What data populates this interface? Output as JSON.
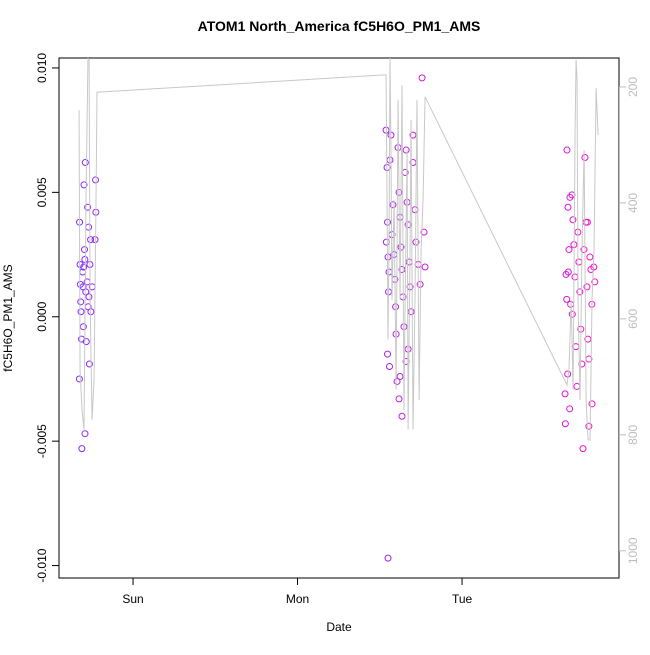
{
  "chart_data": {
    "type": "scatter",
    "title": "ATOM1 North_America fC5H6O_PM1_AMS",
    "xlabel": "Date",
    "ylabel": "fC5H6O_PM1_AMS",
    "xlim": [
      -0.45,
      2.954
    ],
    "xticks": [
      {
        "value": 0,
        "label": "Sun"
      },
      {
        "value": 1,
        "label": "Mon"
      },
      {
        "value": 2,
        "label": "Tue"
      }
    ],
    "ylim": [
      -0.0105,
      0.0104
    ],
    "yticks": [
      {
        "value": -0.01,
        "label": "-0.010"
      },
      {
        "value": -0.005,
        "label": "-0.005"
      },
      {
        "value": 0,
        "label": "0.000"
      },
      {
        "value": 0.005,
        "label": "0.005"
      },
      {
        "value": 0.01,
        "label": "0.010"
      }
    ],
    "y2lim": [
      1047,
      150
    ],
    "y2ticks": [
      200,
      400,
      600,
      800,
      1000
    ],
    "y2_color": "#bdbdbd",
    "series": [
      {
        "type": "scatter",
        "color_scale": [
          "#7a2cff",
          "#ff10c8"
        ],
        "x": [
          -0.325,
          -0.322,
          -0.32,
          -0.318,
          -0.316,
          -0.313,
          -0.326,
          -0.311,
          -0.306,
          -0.304,
          -0.3,
          -0.298,
          -0.29,
          -0.295,
          -0.293,
          -0.287,
          -0.302,
          -0.284,
          -0.265,
          -0.292,
          -0.276,
          -0.27,
          -0.258,
          -0.262,
          -0.279,
          -0.268,
          -0.273,
          -0.256,
          -0.228,
          -0.226,
          -0.231,
          -0.248,
          1.55,
          1.538,
          1.544,
          1.547,
          1.54,
          1.55,
          1.556,
          1.553,
          1.547,
          1.559,
          1.568,
          1.562,
          1.58,
          1.574,
          1.586,
          1.592,
          1.596,
          1.605,
          1.599,
          1.611,
          1.617,
          1.623,
          1.629,
          1.635,
          1.641,
          1.647,
          1.623,
          1.617,
          1.635,
          1.66,
          1.654,
          1.666,
          1.672,
          1.678,
          1.684,
          1.69,
          1.672,
          1.66,
          1.702,
          1.702,
          1.714,
          1.72,
          1.733,
          1.745,
          1.757,
          1.769,
          1.775,
          2.638,
          2.644,
          2.632,
          2.636,
          2.626,
          2.628,
          2.656,
          2.65,
          2.646,
          2.66,
          2.642,
          2.654,
          2.668,
          2.674,
          2.68,
          2.686,
          2.67,
          2.692,
          2.698,
          2.704,
          2.71,
          2.716,
          2.722,
          2.728,
          2.735,
          2.747,
          2.753,
          2.741,
          2.759,
          2.765,
          2.771,
          2.762,
          2.777,
          2.783,
          2.789,
          2.771,
          2.79,
          2.801,
          2.807
        ],
        "values": [
          0.0038,
          0.0021,
          0.0013,
          0.0006,
          0.0002,
          -0.0009,
          -0.0025,
          -0.0053,
          0.0018,
          0.0012,
          0.002,
          0.0053,
          0.0062,
          0.0027,
          0.0023,
          0.001,
          -0.0004,
          -0.001,
          -0.0019,
          -0.0047,
          0.0044,
          0.0036,
          0.0031,
          0.0021,
          0.0014,
          0.0008,
          0.0004,
          0.0002,
          0.0055,
          0.0042,
          0.0031,
          0.0012,
          -0.0097,
          0.0075,
          0.006,
          0.0038,
          0.003,
          0.0024,
          0.0018,
          0.001,
          -0.0015,
          -0.002,
          0.0073,
          0.0063,
          0.0045,
          0.0033,
          0.0025,
          0.0015,
          0.0004,
          -0.0026,
          -0.0007,
          0.0068,
          0.005,
          0.004,
          0.0028,
          0.0019,
          0.0008,
          -0.0004,
          -0.0024,
          -0.0033,
          -0.004,
          0.0067,
          0.0058,
          0.0046,
          0.0037,
          0.0022,
          0.0012,
          0.0002,
          -0.0013,
          -0.0018,
          0.0073,
          0.0062,
          0.0043,
          0.003,
          0.0021,
          0.0013,
          0.0096,
          0.0034,
          0.002,
          0.0067,
          0.0044,
          0.0017,
          0.0007,
          -0.0031,
          -0.0043,
          0.0048,
          0.0027,
          0.0018,
          0.0005,
          -0.0023,
          -0.0037,
          0.0049,
          0.0039,
          0.0029,
          0.0016,
          0.0001,
          -0.0012,
          -0.0028,
          0.0034,
          0.0022,
          0.001,
          -0.0005,
          -0.0019,
          -0.0053,
          0.0064,
          0.0038,
          0.0027,
          0.0012,
          -0.0009,
          -0.0044,
          0.0038,
          0.0024,
          0.0019,
          0.0005,
          -0.0017,
          -0.0035,
          0.002,
          0.0014
        ]
      },
      {
        "type": "line",
        "axis": "y2",
        "color": "#c8c8c8",
        "x": [
          -0.328,
          -0.322,
          -0.31,
          -0.298,
          -0.286,
          -0.274,
          -0.267,
          -0.261,
          -0.249,
          -0.237,
          -0.225,
          -0.219,
          1.538,
          1.544,
          1.55,
          1.556,
          1.562,
          1.568,
          1.574,
          1.587,
          1.599,
          1.611,
          1.623,
          1.635,
          1.647,
          1.654,
          1.666,
          1.672,
          1.684,
          1.69,
          1.702,
          1.714,
          1.726,
          1.739,
          1.751,
          1.763,
          1.775,
          2.638,
          2.65,
          2.663,
          2.675,
          2.687,
          2.693,
          2.699,
          2.705,
          2.717,
          2.729,
          2.742,
          2.754,
          2.766,
          2.778,
          2.79,
          2.802,
          2.815,
          2.827
        ],
        "values": [
          240,
          688,
          757,
          791,
          395,
          150,
          153,
          567,
          774,
          705,
          395,
          209,
          179,
          395,
          636,
          481,
          150,
          309,
          567,
          395,
          722,
          222,
          567,
          197,
          757,
          567,
          309,
          791,
          481,
          257,
          791,
          567,
          222,
          740,
          481,
          395,
          217,
          714,
          688,
          567,
          722,
          274,
          153,
          188,
          567,
          740,
          481,
          309,
          740,
          809,
          809,
          567,
          481,
          202,
          283
        ]
      }
    ]
  }
}
